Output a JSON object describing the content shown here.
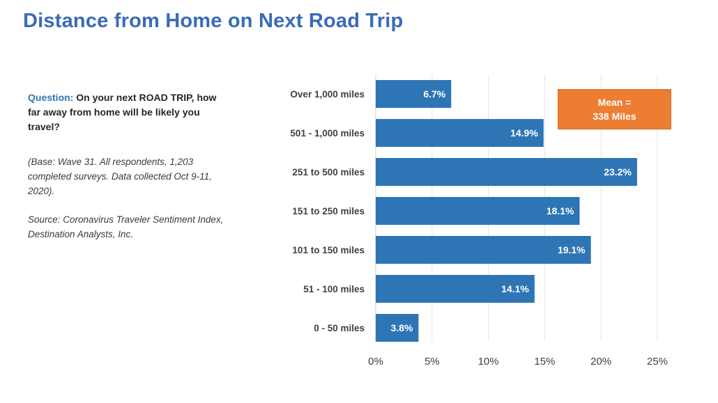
{
  "slide": {
    "title": "Distance from Home on Next Road Trip"
  },
  "question": {
    "label": "Question:",
    "text": "On your next ROAD TRIP, how far away from home will be likely you travel?"
  },
  "notes": {
    "base": "(Base: Wave 31. All respondents, 1,203 completed surveys. Data collected Oct 9-11, 2020).",
    "source": "Source: Coronavirus Traveler Sentiment Index, Destination Analysts, Inc."
  },
  "mean_box": {
    "line1": "Mean =",
    "line2": "338 Miles"
  },
  "colors": {
    "bar": "#2e75b6",
    "title": "#3a6bb7",
    "mean_box": "#ed7d31"
  },
  "chart_data": {
    "type": "bar",
    "orientation": "horizontal",
    "categories": [
      "Over 1,000 miles",
      "501 - 1,000 miles",
      "251 to 500 miles",
      "151 to 250 miles",
      "101 to 150 miles",
      "51 - 100 miles",
      "0 - 50 miles"
    ],
    "values": [
      6.7,
      14.9,
      23.2,
      18.1,
      19.1,
      14.1,
      3.8
    ],
    "value_labels": [
      "6.7%",
      "14.9%",
      "23.2%",
      "18.1%",
      "19.1%",
      "14.1%",
      "3.8%"
    ],
    "xlim": [
      0,
      25
    ],
    "xticks": [
      0,
      5,
      10,
      15,
      20,
      25
    ],
    "xtick_labels": [
      "0%",
      "5%",
      "10%",
      "15%",
      "20%",
      "25%"
    ],
    "grid": true
  }
}
